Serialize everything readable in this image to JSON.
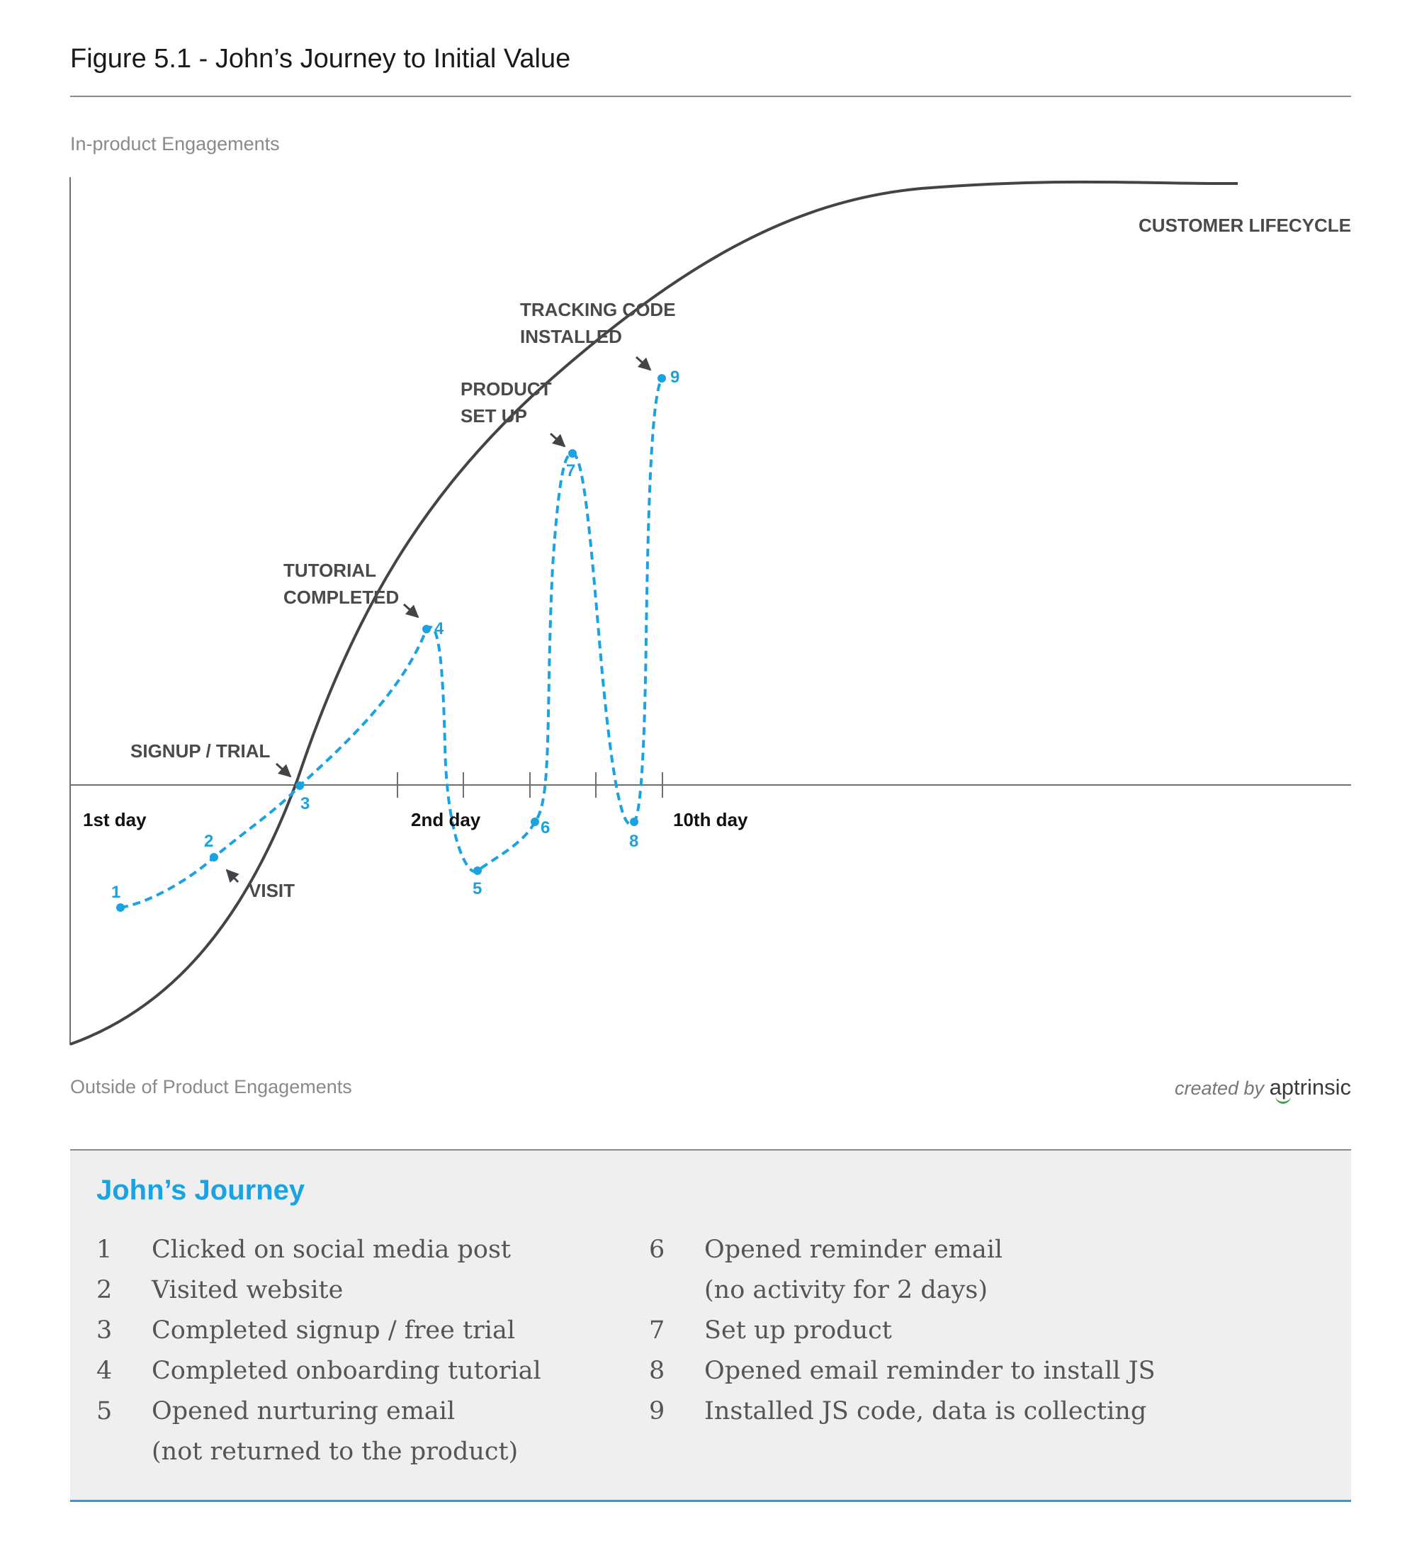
{
  "figure": {
    "title": "Figure 5.1 - John’s Journey to Initial Value"
  },
  "axis": {
    "y_top_label": "In-product Engagements",
    "y_bottom_label": "Outside of Product Engagements",
    "day_labels": [
      "1st day",
      "2nd day",
      "10th day"
    ]
  },
  "curve": {
    "label": "CUSTOMER LIFECYCLE"
  },
  "milestones": [
    {
      "id": "visit",
      "label": "VISIT"
    },
    {
      "id": "signup",
      "label": "SIGNUP / TRIAL"
    },
    {
      "id": "tutorial",
      "label": "TUTORIAL COMPLETED"
    },
    {
      "id": "product",
      "label": "PRODUCT SET UP"
    },
    {
      "id": "tracking",
      "label": "TRACKING CODE INSTALLED"
    }
  ],
  "journey_points": [
    "1",
    "2",
    "3",
    "4",
    "5",
    "6",
    "7",
    "8",
    "9"
  ],
  "credit": {
    "prefix": "created by",
    "brand": "aptrinsic"
  },
  "legend": {
    "title": "John’s Journey",
    "items": [
      {
        "num": "1",
        "text": [
          "Clicked on social media post"
        ]
      },
      {
        "num": "2",
        "text": [
          "Visited website"
        ]
      },
      {
        "num": "3",
        "text": [
          "Completed signup / free trial"
        ]
      },
      {
        "num": "4",
        "text": [
          "Completed onboarding tutorial"
        ]
      },
      {
        "num": "5",
        "text": [
          "Opened nurturing email",
          "(not returned to the product)"
        ]
      },
      {
        "num": "6",
        "text": [
          "Opened reminder email",
          "(no activity for 2 days)"
        ]
      },
      {
        "num": "7",
        "text": [
          "Set up product"
        ]
      },
      {
        "num": "8",
        "text": [
          "Opened email reminder to install JS"
        ]
      },
      {
        "num": "9",
        "text": [
          "Installed JS code, data is collecting"
        ]
      }
    ]
  },
  "colors": {
    "curve": "#424448",
    "journey": "#1aa3e0",
    "label": "#4a4a4a",
    "axis": "#6f6f6f"
  }
}
